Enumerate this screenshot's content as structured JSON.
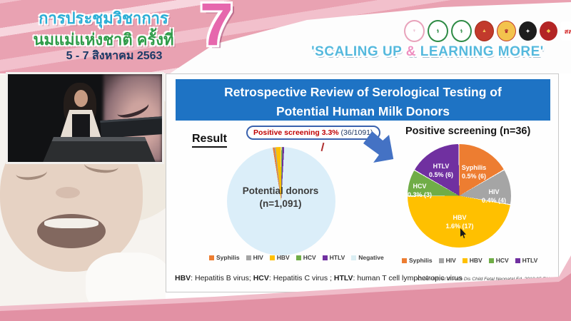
{
  "banner": {
    "title_line1": "การประชุมวิชาการ",
    "title_line2": "นมแม่แห่งชาติ ครั้งที่",
    "date_line": "5 - 7 สิงหาคม 2563",
    "edition_number": "7",
    "slogan_part1": "'SCALING UP ",
    "slogan_amp": "&",
    "slogan_part2": " LEARNING MORE'",
    "accent_colors": {
      "slogan_blue": "#55b9dd",
      "slogan_pink": "#ef8fc0",
      "banner_pink": "#e9a2b2",
      "seven_pink": "#e667ad"
    },
    "logos": [
      {
        "name": "mother-child-foundation-logo"
      },
      {
        "name": "green-medical-council-logo"
      },
      {
        "name": "green-health-department-logo"
      },
      {
        "name": "red-gold-college-emblem"
      },
      {
        "name": "royal-crown-emblem"
      },
      {
        "name": "black-university-emblem"
      },
      {
        "name": "red-royal-college-emblem"
      },
      {
        "name": "thai-health-promotion-logo",
        "text": "สสส"
      }
    ]
  },
  "slide": {
    "title_line1": "Retrospective Review of Serological Testing of",
    "title_line2": "Potential Human Milk Donors",
    "title_bg": "#1e73c4",
    "result_label": "Result",
    "callout": {
      "highlight": "Positive screening 3.3%",
      "detail": " (36/1091)"
    },
    "left_pie": {
      "center_label_line1": "Potential donors",
      "center_label_line2": "(n=1,091)",
      "legend": [
        {
          "label": "Syphilis",
          "color": "#ed7d31"
        },
        {
          "label": "HIV",
          "color": "#a5a5a5"
        },
        {
          "label": "HBV",
          "color": "#ffc000"
        },
        {
          "label": "HCV",
          "color": "#70ad47"
        },
        {
          "label": "HTLV",
          "color": "#7030a0"
        },
        {
          "label": "Negative",
          "color": "#daeef3"
        }
      ]
    },
    "right_pie": {
      "title": "Positive screening (n=36)",
      "slices": [
        {
          "name": "Syphilis",
          "label": "0.5% (6)",
          "color": "#ed7d31"
        },
        {
          "name": "HIV",
          "label": "0.4% (4)",
          "color": "#a5a5a5"
        },
        {
          "name": "HBV",
          "label": "1.6% (17)",
          "color": "#ffc000"
        },
        {
          "name": "HCV",
          "label": "0.3% (3)",
          "color": "#70ad47"
        },
        {
          "name": "HTLV",
          "label": "0.5% (6)",
          "color": "#7030a0"
        }
      ],
      "legend": [
        {
          "label": "Syphilis",
          "color": "#ed7d31"
        },
        {
          "label": "HIV",
          "color": "#a5a5a5"
        },
        {
          "label": "HBV",
          "color": "#ffc000"
        },
        {
          "label": "HCV",
          "color": "#70ad47"
        },
        {
          "label": "HTLV",
          "color": "#7030a0"
        }
      ]
    },
    "footnote": {
      "b1": "HBV",
      "t1": ": Hepatitis B virus; ",
      "b2": "HCV",
      "t2": ": Hepatitis C virus ; ",
      "b3": "HTLV",
      "t3": ": human T cell lymphotropic virus"
    },
    "citation": "Cohen RS, et al. Arch Dis Child Fetal Neonatal Ed. 2010;95:F118-F120."
  },
  "chart_data": [
    {
      "type": "pie",
      "title": "Potential donors (n=1,091)",
      "labels": [
        "Syphilis",
        "HIV",
        "HBV",
        "HCV",
        "HTLV",
        "Negative"
      ],
      "values": [
        6,
        4,
        17,
        3,
        6,
        1055
      ],
      "colors": [
        "#ed7d31",
        "#a5a5a5",
        "#ffc000",
        "#70ad47",
        "#7030a0",
        "#daeef3"
      ],
      "annotation": "Positive screening 3.3% (36/1091)",
      "legend_position": "bottom"
    },
    {
      "type": "pie",
      "title": "Positive screening (n=36)",
      "labels": [
        "Syphilis",
        "HIV",
        "HBV",
        "HCV",
        "HTLV"
      ],
      "values": [
        6,
        4,
        17,
        3,
        6
      ],
      "percent_labels": [
        "0.5% (6)",
        "0.4% (4)",
        "1.6% (17)",
        "0.3% (3)",
        "0.5% (6)"
      ],
      "colors": [
        "#ed7d31",
        "#a5a5a5",
        "#ffc000",
        "#70ad47",
        "#7030a0"
      ],
      "legend_position": "bottom"
    }
  ]
}
